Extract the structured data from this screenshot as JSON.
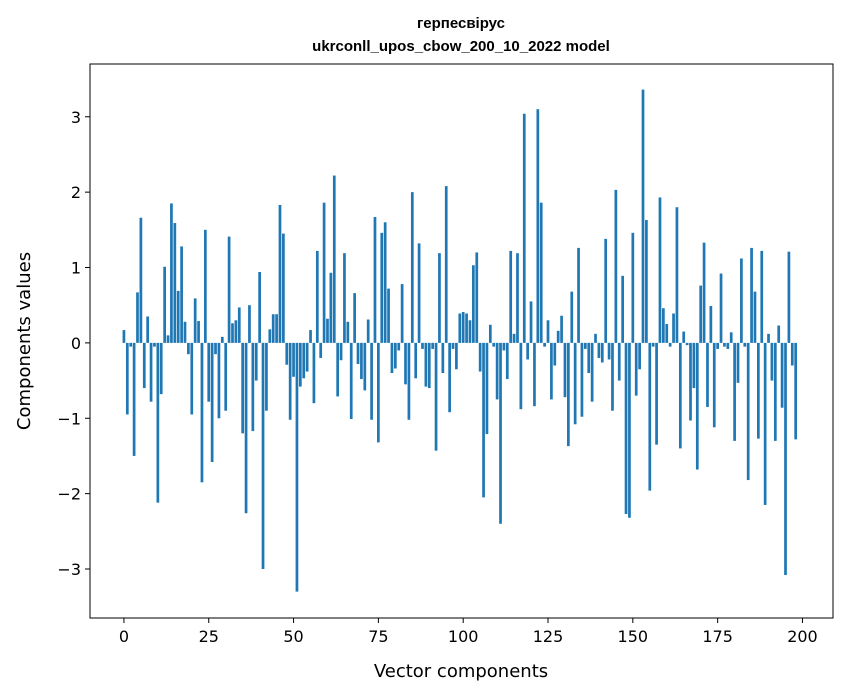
{
  "chart_data": {
    "type": "bar",
    "title_line1": "герпесвірус",
    "title_line2": "ukrconll_upos_cbow_200_10_2022 model",
    "xlabel": "Vector components",
    "ylabel": "Components values",
    "xlim": [
      -10,
      209
    ],
    "ylim": [
      -3.65,
      3.7
    ],
    "xticks": [
      0,
      25,
      50,
      75,
      100,
      125,
      150,
      175,
      200
    ],
    "yticks": [
      -3,
      -2,
      -1,
      0,
      1,
      2,
      3
    ],
    "xtick_labels": [
      "0",
      "25",
      "50",
      "75",
      "100",
      "125",
      "150",
      "175",
      "200"
    ],
    "ytick_labels": [
      "−3",
      "−2",
      "−1",
      "0",
      "1",
      "2",
      "3"
    ],
    "color": "#1f77b4",
    "values": [
      0.17,
      -0.95,
      -0.05,
      -1.5,
      0.67,
      1.66,
      -0.6,
      0.35,
      -0.78,
      -0.05,
      -2.12,
      -0.68,
      1.01,
      0.1,
      1.85,
      1.59,
      0.69,
      1.28,
      0.28,
      -0.15,
      -0.95,
      0.59,
      0.29,
      -1.85,
      1.5,
      -0.78,
      -1.58,
      -0.15,
      -1.0,
      0.08,
      -0.9,
      1.41,
      0.26,
      0.3,
      0.47,
      -1.2,
      -2.26,
      0.5,
      -1.17,
      -0.5,
      0.94,
      -3.0,
      -0.9,
      0.18,
      0.38,
      0.38,
      1.83,
      1.45,
      -0.29,
      -1.02,
      -0.45,
      -3.3,
      -0.58,
      -0.47,
      -0.38,
      0.17,
      -0.8,
      1.22,
      -0.2,
      1.86,
      0.32,
      0.93,
      2.22,
      -0.71,
      -0.23,
      1.19,
      0.28,
      -1.01,
      0.66,
      -0.28,
      -0.48,
      -0.63,
      0.31,
      -1.02,
      1.67,
      -1.32,
      1.46,
      1.6,
      0.72,
      -0.4,
      -0.34,
      -0.1,
      0.78,
      -0.55,
      -1.02,
      2.0,
      -0.47,
      1.32,
      -0.08,
      -0.58,
      -0.6,
      -0.08,
      -1.43,
      1.19,
      -0.4,
      2.08,
      -0.92,
      -0.08,
      -0.35,
      0.39,
      0.41,
      0.39,
      0.3,
      1.03,
      1.2,
      -0.38,
      -2.05,
      -1.21,
      0.24,
      -0.05,
      -0.75,
      -2.4,
      -0.1,
      -0.48,
      1.22,
      0.12,
      1.19,
      -0.88,
      3.04,
      -0.22,
      0.55,
      -0.84,
      3.1,
      1.86,
      -0.05,
      0.3,
      -0.75,
      -0.3,
      0.16,
      0.36,
      -0.72,
      -1.37,
      0.68,
      -1.08,
      1.26,
      -0.98,
      -0.08,
      -0.4,
      -0.78,
      0.12,
      -0.2,
      -0.26,
      1.38,
      -0.22,
      -0.9,
      2.03,
      -0.5,
      0.89,
      -2.27,
      -2.32,
      1.46,
      -0.7,
      -0.35,
      3.36,
      1.63,
      -1.96,
      -0.05,
      -1.35,
      1.93,
      0.46,
      0.25,
      -0.05,
      0.39,
      1.8,
      -1.4,
      0.15,
      -0.03,
      -1.03,
      -0.6,
      -1.68,
      0.76,
      1.33,
      -0.85,
      0.49,
      -1.12,
      -0.08,
      0.92,
      -0.05,
      -0.08,
      0.14,
      -1.3,
      -0.53,
      1.12,
      -0.05,
      -1.82,
      1.26,
      0.68,
      -1.27,
      1.22,
      -2.15,
      0.12,
      -0.5,
      -1.3,
      0.23,
      -0.86,
      -3.08,
      1.21,
      -0.3,
      -1.28
    ]
  }
}
